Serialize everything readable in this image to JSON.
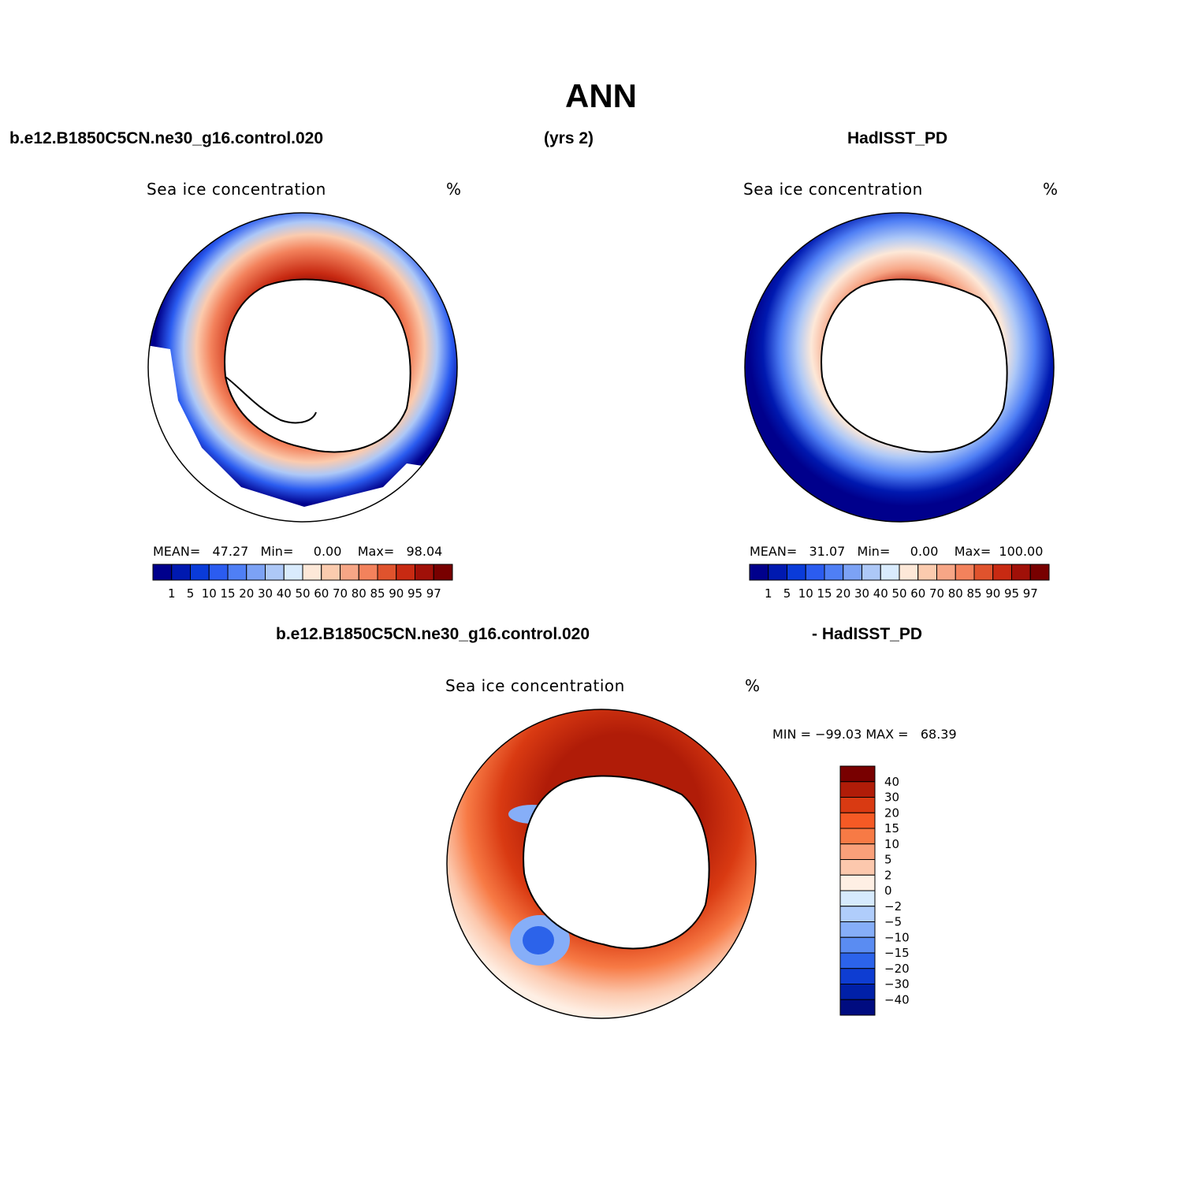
{
  "title": "ANN",
  "header": {
    "case_name": "b.e12.B1850C5CN.ne30_g16.control.020",
    "years": "(yrs 2)",
    "obs_name": "HadISST_PD"
  },
  "diff_header": {
    "case_name": "b.e12.B1850C5CN.ne30_g16.control.020",
    "obs_name": "- HadISST_PD"
  },
  "panels": [
    {
      "id": "model",
      "title": "Sea ice concentration",
      "units": "%",
      "stats": "MEAN=   47.27   Min=     0.00    Max=   98.04"
    },
    {
      "id": "obs",
      "title": "Sea ice concentration",
      "units": "%",
      "stats": "MEAN=   31.07   Min=     0.00    Max=  100.00"
    },
    {
      "id": "diff",
      "title": "Sea ice concentration",
      "units": "%",
      "stats": "MIN = −99.03 MAX =   68.39"
    }
  ],
  "colorbar_abs": {
    "labels": [
      "1",
      "5",
      "10",
      "15",
      "20",
      "30",
      "40",
      "50",
      "60",
      "70",
      "80",
      "85",
      "90",
      "95",
      "97"
    ],
    "colors": [
      "#00008c",
      "#0019b0",
      "#0a3bd9",
      "#2b5cf0",
      "#4f7ff5",
      "#7ca2f5",
      "#adc8f7",
      "#d9ebfd",
      "#fde8d8",
      "#fbcbae",
      "#f7a686",
      "#f3825c",
      "#e0532d",
      "#c82a12",
      "#a01008",
      "#780000"
    ]
  },
  "colorbar_diff": {
    "labels": [
      "40",
      "30",
      "20",
      "15",
      "10",
      "5",
      "2",
      "0",
      "−2",
      "−5",
      "−10",
      "−15",
      "−20",
      "−30",
      "−40"
    ],
    "colors": [
      "#780000",
      "#b01c08",
      "#d93a12",
      "#f55a25",
      "#f77a45",
      "#f9a07a",
      "#fcc8ad",
      "#feefe4",
      "#d6eafd",
      "#b0cdfb",
      "#86aef8",
      "#5a8cf2",
      "#2c63ea",
      "#0e3dd2",
      "#0020a8",
      "#000c80"
    ]
  }
}
